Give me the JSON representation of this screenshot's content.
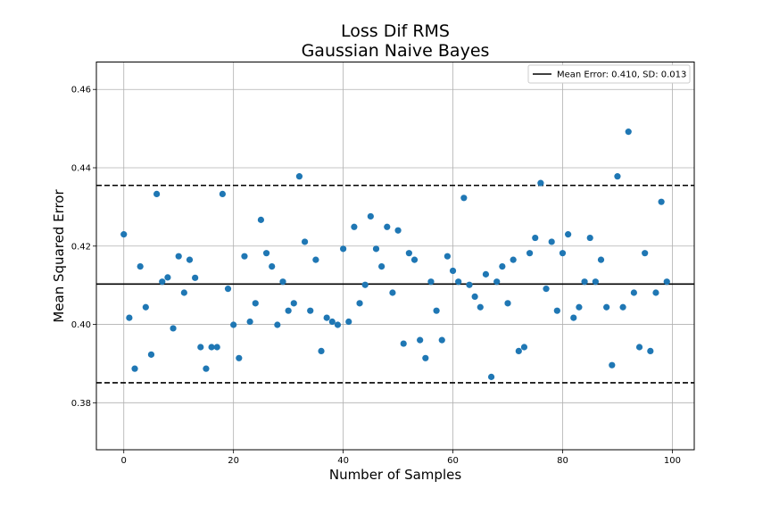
{
  "chart_data": {
    "type": "scatter",
    "title": [
      "Loss Dif RMS",
      "Gaussian Naive Bayes"
    ],
    "xlabel": "Number of Samples",
    "ylabel": "Mean Squared Error",
    "xlim": [
      -5,
      104
    ],
    "ylim": [
      0.368,
      0.467
    ],
    "xticks": [
      0,
      20,
      40,
      60,
      80,
      100
    ],
    "yticks": [
      0.38,
      0.4,
      0.42,
      0.44,
      0.46
    ],
    "ytick_labels": [
      "0.38",
      "0.40",
      "0.42",
      "0.44",
      "0.46"
    ],
    "grid": true,
    "legend": {
      "placement": "top-right",
      "entries": [
        "Mean Error: 0.410, SD: 0.013"
      ]
    },
    "mean_line": 0.4103,
    "sd_lines": [
      0.4355,
      0.3851
    ],
    "colors": {
      "points": "#1f77b4",
      "lines": "#000000",
      "grid": "#b0b0b0"
    },
    "series": [
      {
        "x": [
          0,
          1,
          2,
          3,
          4,
          5,
          6,
          7,
          8,
          9,
          10,
          11,
          12,
          13,
          14,
          15,
          16,
          17,
          18,
          19,
          20,
          21,
          22,
          23,
          24,
          25,
          26,
          27,
          28,
          29,
          30,
          31,
          32,
          33,
          34,
          35,
          36,
          37,
          38,
          39,
          40,
          41,
          42,
          43,
          44,
          45,
          46,
          47,
          48,
          49,
          50,
          51,
          52,
          53,
          54,
          55,
          56,
          57,
          58,
          59,
          60,
          61,
          62,
          63,
          64,
          65,
          66,
          67,
          68,
          69,
          70,
          71,
          72,
          73,
          74,
          75,
          76,
          77,
          78,
          79,
          80,
          81,
          82,
          83,
          84,
          85,
          86,
          87,
          88,
          89,
          90,
          91,
          92,
          93,
          94,
          95,
          96,
          97,
          98,
          99
        ],
        "y": [
          0.423,
          0.4017,
          0.3887,
          0.4148,
          0.4044,
          0.3923,
          0.4333,
          0.4109,
          0.412,
          0.399,
          0.4174,
          0.4081,
          0.4165,
          0.4119,
          0.3942,
          0.3887,
          0.3942,
          0.3942,
          0.4333,
          0.4091,
          0.3999,
          0.3914,
          0.4174,
          0.4007,
          0.4054,
          0.4267,
          0.4182,
          0.4148,
          0.3999,
          0.4109,
          0.4035,
          0.4054,
          0.4378,
          0.4211,
          0.4035,
          0.4165,
          0.3932,
          0.4017,
          0.4007,
          0.3999,
          0.4193,
          0.4007,
          0.4249,
          0.4054,
          0.4101,
          0.4276,
          0.4193,
          0.4148,
          0.4249,
          0.4081,
          0.424,
          0.3951,
          0.4182,
          0.4165,
          0.396,
          0.3914,
          0.4109,
          0.4035,
          0.396,
          0.4174,
          0.4137,
          0.4109,
          0.4323,
          0.4101,
          0.4071,
          0.4044,
          0.4128,
          0.3866,
          0.4109,
          0.4148,
          0.4054,
          0.4165,
          0.3932,
          0.3942,
          0.4182,
          0.4221,
          0.4361,
          0.4091,
          0.4211,
          0.4035,
          0.4182,
          0.423,
          0.4017,
          0.4044,
          0.4109,
          0.4221,
          0.4109,
          0.4165,
          0.4044,
          0.3896,
          0.4378,
          0.4044,
          0.4492,
          0.4081,
          0.3942,
          0.4182,
          0.3932,
          0.4081,
          0.4313,
          0.4109
        ]
      }
    ]
  }
}
